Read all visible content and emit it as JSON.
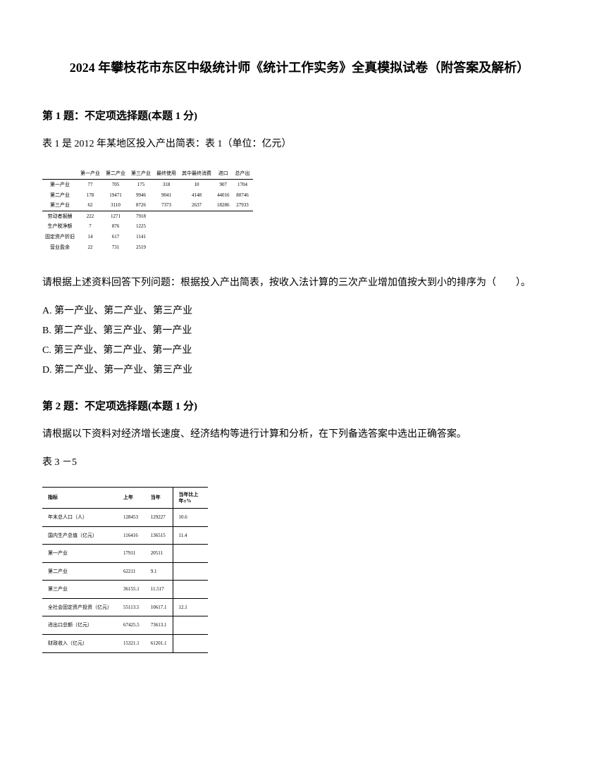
{
  "title": "2024 年攀枝花市东区中级统计师《统计工作实务》全真模拟试卷（附答案及解析）",
  "q1": {
    "header": "第 1 题：不定项选择题(本题 1 分)",
    "intro": "表 1 是 2012 年某地区投入产出简表：表 1（单位：亿元）",
    "table": {
      "headers": [
        "",
        "第一产业",
        "第二产业",
        "第三产业",
        "最终使用",
        "其中最终消费",
        "进口",
        "总产出"
      ],
      "rows": [
        [
          "第一产业",
          "77",
          "705",
          "175",
          "318",
          "10",
          "907",
          "1704"
        ],
        [
          "第二产业",
          "178",
          "19471",
          "9946",
          "9041",
          "4148",
          "44016",
          "80746"
        ],
        [
          "第三产业",
          "62",
          "3110",
          "8726",
          "7373",
          "2637",
          "18286",
          "27933"
        ]
      ],
      "bottom_rows": [
        [
          "劳动者报酬",
          "222",
          "1271",
          "7918"
        ],
        [
          "生产税净额",
          "7",
          "876",
          "1225"
        ],
        [
          "固定资产折旧",
          "14",
          "617",
          "1141"
        ],
        [
          "营业盈余",
          "22",
          "731",
          "2519"
        ]
      ]
    },
    "question": "请根据上述资料回答下列问题：根据投入产出简表，按收入法计算的三次产业增加值按大到小的排序为（　　）。",
    "options": {
      "a": "A. 第一产业、第二产业、第三产业",
      "b": "B. 第二产业、第三产业、第一产业",
      "c": "C. 第三产业、第二产业、第一产业",
      "d": "D. 第二产业、第一产业、第三产业"
    }
  },
  "q2": {
    "header": "第 2 题：不定项选择题(本题 1 分)",
    "intro": "请根据以下资料对经济增长速度、经济结构等进行计算和分析，在下列备选答案中选出正确答案。",
    "subcaption": "表 3 －5",
    "table": {
      "headers": [
        "指标",
        "上年",
        "当年",
        "当年比上年±%"
      ],
      "rows": [
        [
          "年末总人口（人）",
          "128453",
          "129227",
          "10.6"
        ],
        [
          "国内生产总值（亿元）",
          "116416",
          "136515",
          "11.4"
        ],
        [
          "第一产业",
          "17911",
          "20511",
          ""
        ],
        [
          "第二产业",
          "62211",
          "9.1",
          ""
        ],
        [
          "第三产业",
          "36155.1",
          "11.517",
          ""
        ],
        [
          "全社会固定资产投资（亿元）",
          "55113.5",
          "10617.1",
          "12.1"
        ],
        [
          "进出口总额（亿元）",
          "67425.5",
          "73613.1",
          ""
        ],
        [
          "财政收入（亿元）",
          "15321.1",
          "61201.1",
          ""
        ]
      ]
    }
  }
}
